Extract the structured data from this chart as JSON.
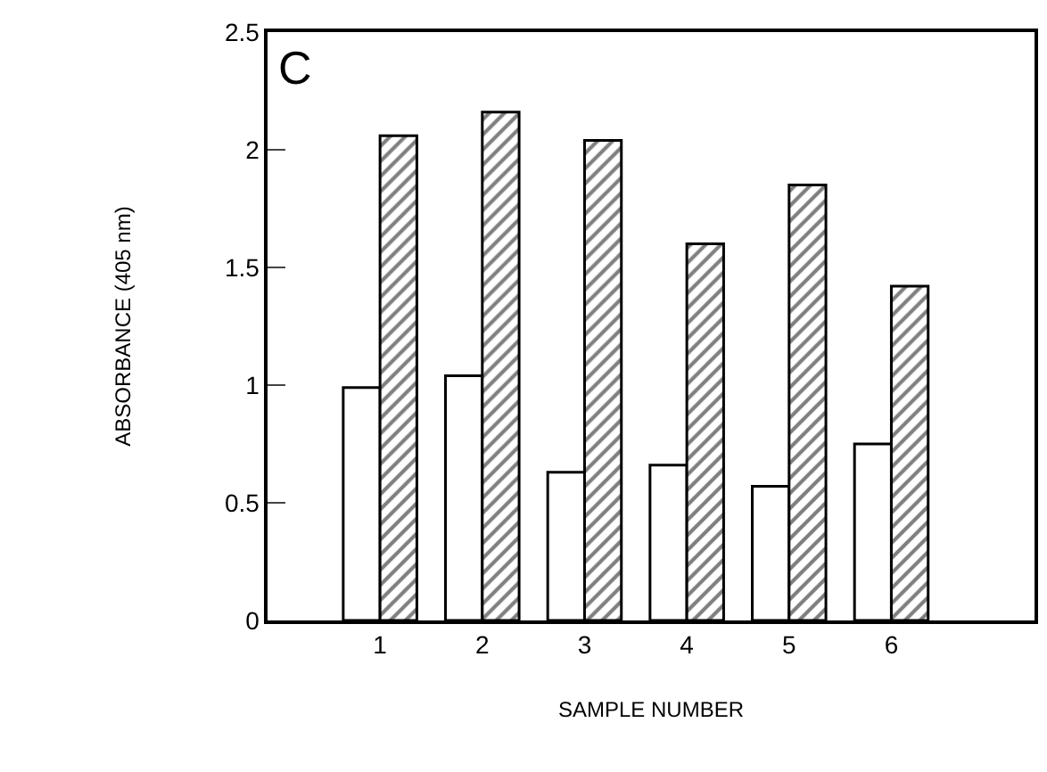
{
  "chart_data": {
    "type": "bar",
    "xlabel": "SAMPLE NUMBER",
    "ylabel": "ABSORBANCE (405 nm)",
    "annotations": [
      "C"
    ],
    "categories": [
      "1",
      "2",
      "3",
      "4",
      "5",
      "6"
    ],
    "series": [
      {
        "color": "#ffffff",
        "values": [
          0.99,
          1.04,
          0.63,
          0.66,
          0.57,
          0.75
        ]
      },
      {
        "color": "#000000",
        "values": [
          2.06,
          2.16,
          2.04,
          1.6,
          1.85,
          1.42
        ]
      }
    ],
    "ylim": [
      0,
      2.5
    ],
    "yticks": [
      0,
      0.5,
      1,
      1.5,
      2,
      2.5
    ]
  }
}
